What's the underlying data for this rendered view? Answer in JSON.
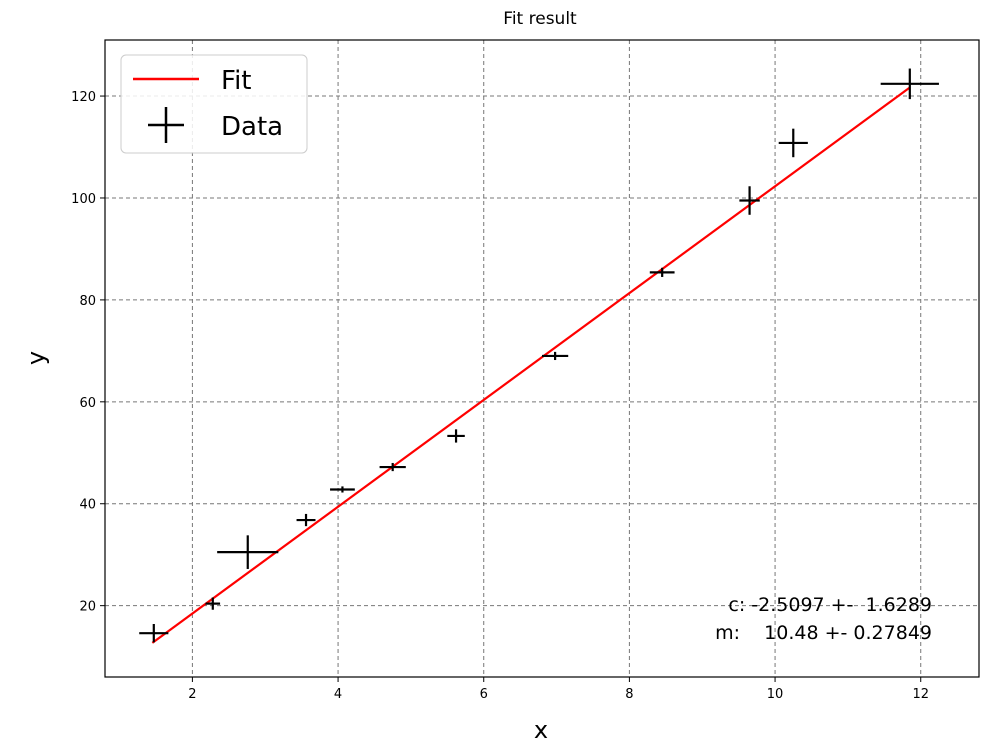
{
  "chart_data": {
    "type": "scatter",
    "title": "Fit result",
    "xlabel": "x",
    "ylabel": "y",
    "xlim": [
      0.8,
      12.8
    ],
    "ylim": [
      6,
      131
    ],
    "xticks": [
      2,
      4,
      6,
      8,
      10,
      12
    ],
    "yticks": [
      20,
      40,
      60,
      80,
      100,
      120
    ],
    "xtick_labels": [
      "2",
      "4",
      "6",
      "8",
      "10",
      "12"
    ],
    "ytick_labels": [
      "20",
      "40",
      "60",
      "80",
      "100",
      "120"
    ],
    "grid": true,
    "legend_placement": "upper-left",
    "series": [
      {
        "name": "Fit",
        "kind": "line",
        "color": "#ff0000",
        "x": [
          1.45,
          11.85
        ],
        "y": [
          12.69,
          121.68
        ]
      },
      {
        "name": "Data",
        "kind": "errorbar",
        "color": "#000000",
        "points": [
          {
            "x": 1.47,
            "y": 14.6,
            "xerr": 0.2,
            "yerr": 1.8
          },
          {
            "x": 2.28,
            "y": 20.4,
            "xerr": 0.1,
            "yerr": 1.2
          },
          {
            "x": 2.76,
            "y": 30.5,
            "xerr": 0.42,
            "yerr": 3.3
          },
          {
            "x": 3.56,
            "y": 36.8,
            "xerr": 0.13,
            "yerr": 1.2
          },
          {
            "x": 4.06,
            "y": 42.8,
            "xerr": 0.17,
            "yerr": 0.6
          },
          {
            "x": 4.75,
            "y": 47.2,
            "xerr": 0.18,
            "yerr": 0.8
          },
          {
            "x": 5.62,
            "y": 53.3,
            "xerr": 0.12,
            "yerr": 1.3
          },
          {
            "x": 6.98,
            "y": 69.0,
            "xerr": 0.18,
            "yerr": 0.8
          },
          {
            "x": 8.45,
            "y": 85.4,
            "xerr": 0.17,
            "yerr": 0.9
          },
          {
            "x": 9.65,
            "y": 99.5,
            "xerr": 0.14,
            "yerr": 2.8
          },
          {
            "x": 10.25,
            "y": 110.8,
            "xerr": 0.2,
            "yerr": 2.8
          },
          {
            "x": 11.85,
            "y": 122.4,
            "xerr": 0.4,
            "yerr": 3.0
          }
        ]
      }
    ],
    "annotations": [
      "c: -2.5097 +-  1.6289",
      "m:    10.48 +- 0.27849"
    ]
  }
}
